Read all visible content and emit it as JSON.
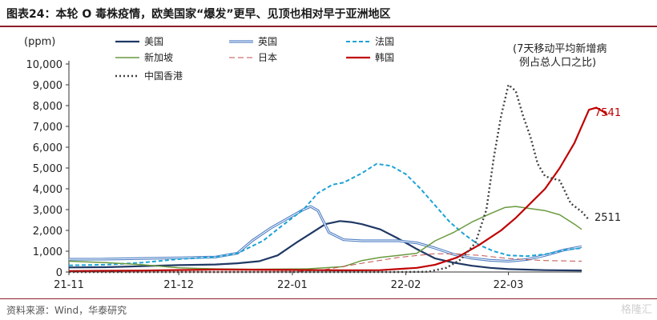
{
  "header": {
    "title": "图表24：本轮 O 毒株疫情，欧美国家“爆发”更早、见顶也相对早于亚洲地区"
  },
  "footer": {
    "source": "资料来源：Wind，华泰研究",
    "watermark": "格隆汇"
  },
  "colors": {
    "accent_rule": "#8c1d2b"
  },
  "chart_data": {
    "type": "line",
    "unit_label": "(ppm)",
    "annotation": [
      "(7天移动平均新增病",
      "例占总人口之比)"
    ],
    "end_labels": [
      {
        "text": "7541",
        "value": 7541,
        "color": "#c00000"
      },
      {
        "text": "2511",
        "value": 2511,
        "color": "#222222"
      }
    ],
    "x_ticks": [
      {
        "label": "21-11",
        "day": 0
      },
      {
        "label": "21-12",
        "day": 30
      },
      {
        "label": "22-01",
        "day": 61
      },
      {
        "label": "22-02",
        "day": 92
      },
      {
        "label": "22-03",
        "day": 120
      }
    ],
    "x_range": [
      0,
      140
    ],
    "ylim": [
      0,
      10000
    ],
    "y_ticks": [
      0,
      1000,
      2000,
      3000,
      4000,
      5000,
      6000,
      7000,
      8000,
      9000,
      10000
    ],
    "y_tick_labels": [
      "0",
      "1,000",
      "2,000",
      "3,000",
      "4,000",
      "5,000",
      "6,000",
      "7,000",
      "8,000",
      "9,000",
      "10,000"
    ],
    "series": [
      {
        "name": "美国",
        "color": "#1f3864",
        "style": "solid",
        "width": 2.2,
        "points": [
          [
            0,
            220
          ],
          [
            10,
            230
          ],
          [
            20,
            280
          ],
          [
            30,
            330
          ],
          [
            40,
            360
          ],
          [
            46,
            420
          ],
          [
            52,
            520
          ],
          [
            57,
            800
          ],
          [
            62,
            1400
          ],
          [
            66,
            1850
          ],
          [
            70,
            2300
          ],
          [
            74,
            2450
          ],
          [
            77,
            2400
          ],
          [
            80,
            2300
          ],
          [
            85,
            2050
          ],
          [
            90,
            1600
          ],
          [
            95,
            1100
          ],
          [
            100,
            650
          ],
          [
            105,
            450
          ],
          [
            110,
            300
          ],
          [
            115,
            200
          ],
          [
            120,
            140
          ],
          [
            130,
            90
          ],
          [
            140,
            75
          ]
        ]
      },
      {
        "name": "英国",
        "color": "#4f7fc3",
        "style": "double",
        "width": 3.2,
        "points": [
          [
            0,
            610
          ],
          [
            10,
            620
          ],
          [
            20,
            650
          ],
          [
            30,
            680
          ],
          [
            40,
            720
          ],
          [
            46,
            900
          ],
          [
            50,
            1500
          ],
          [
            55,
            2100
          ],
          [
            60,
            2600
          ],
          [
            64,
            3000
          ],
          [
            66,
            3150
          ],
          [
            68,
            2950
          ],
          [
            71,
            1900
          ],
          [
            75,
            1550
          ],
          [
            80,
            1500
          ],
          [
            90,
            1500
          ],
          [
            95,
            1400
          ],
          [
            100,
            1150
          ],
          [
            105,
            850
          ],
          [
            110,
            660
          ],
          [
            115,
            560
          ],
          [
            120,
            520
          ],
          [
            125,
            600
          ],
          [
            130,
            800
          ],
          [
            135,
            1050
          ],
          [
            140,
            1220
          ]
        ]
      },
      {
        "name": "法国",
        "color": "#1ca3d6",
        "style": "dashed",
        "width": 2,
        "points": [
          [
            0,
            320
          ],
          [
            10,
            350
          ],
          [
            20,
            450
          ],
          [
            30,
            620
          ],
          [
            40,
            720
          ],
          [
            46,
            900
          ],
          [
            53,
            1500
          ],
          [
            58,
            2200
          ],
          [
            64,
            3000
          ],
          [
            68,
            3800
          ],
          [
            72,
            4200
          ],
          [
            75,
            4300
          ],
          [
            80,
            4750
          ],
          [
            84,
            5200
          ],
          [
            88,
            5100
          ],
          [
            92,
            4700
          ],
          [
            96,
            4000
          ],
          [
            100,
            3200
          ],
          [
            104,
            2400
          ],
          [
            108,
            1800
          ],
          [
            112,
            1300
          ],
          [
            116,
            1000
          ],
          [
            120,
            800
          ],
          [
            125,
            760
          ],
          [
            130,
            850
          ],
          [
            135,
            1050
          ],
          [
            140,
            1150
          ]
        ]
      },
      {
        "name": "新加坡",
        "color": "#6a9a3e",
        "style": "solid",
        "width": 1.5,
        "points": [
          [
            0,
            520
          ],
          [
            10,
            450
          ],
          [
            20,
            350
          ],
          [
            30,
            200
          ],
          [
            40,
            150
          ],
          [
            50,
            130
          ],
          [
            58,
            140
          ],
          [
            65,
            150
          ],
          [
            75,
            260
          ],
          [
            80,
            550
          ],
          [
            85,
            700
          ],
          [
            90,
            800
          ],
          [
            95,
            900
          ],
          [
            100,
            1500
          ],
          [
            105,
            1900
          ],
          [
            110,
            2400
          ],
          [
            115,
            2800
          ],
          [
            119,
            3100
          ],
          [
            122,
            3150
          ],
          [
            126,
            3050
          ],
          [
            130,
            2950
          ],
          [
            134,
            2750
          ],
          [
            138,
            2300
          ],
          [
            140,
            2050
          ]
        ]
      },
      {
        "name": "日本",
        "color": "#c0504d",
        "style": "dashed-thin",
        "width": 1,
        "points": [
          [
            0,
            5
          ],
          [
            30,
            5
          ],
          [
            55,
            10
          ],
          [
            62,
            20
          ],
          [
            70,
            120
          ],
          [
            80,
            420
          ],
          [
            90,
            700
          ],
          [
            100,
            880
          ],
          [
            106,
            870
          ],
          [
            112,
            800
          ],
          [
            120,
            650
          ],
          [
            130,
            550
          ],
          [
            140,
            520
          ]
        ]
      },
      {
        "name": "韩国",
        "color": "#c00000",
        "style": "solid",
        "width": 2.2,
        "points": [
          [
            0,
            45
          ],
          [
            20,
            70
          ],
          [
            40,
            120
          ],
          [
            60,
            100
          ],
          [
            75,
            80
          ],
          [
            85,
            90
          ],
          [
            95,
            200
          ],
          [
            100,
            350
          ],
          [
            106,
            700
          ],
          [
            112,
            1300
          ],
          [
            118,
            2000
          ],
          [
            122,
            2600
          ],
          [
            126,
            3300
          ],
          [
            130,
            4000
          ],
          [
            134,
            5000
          ],
          [
            138,
            6200
          ],
          [
            142,
            7800
          ],
          [
            144,
            7900
          ],
          [
            146,
            7700
          ],
          [
            147,
            7541
          ]
        ]
      },
      {
        "name": "中国香港",
        "color": "#404040",
        "style": "dotted",
        "width": 2.4,
        "points": [
          [
            0,
            0
          ],
          [
            60,
            0
          ],
          [
            90,
            0
          ],
          [
            98,
            10
          ],
          [
            103,
            200
          ],
          [
            107,
            600
          ],
          [
            111,
            1400
          ],
          [
            114,
            3000
          ],
          [
            116,
            5500
          ],
          [
            118,
            7500
          ],
          [
            120,
            9000
          ],
          [
            122,
            8700
          ],
          [
            124,
            7500
          ],
          [
            126,
            6500
          ],
          [
            128,
            5200
          ],
          [
            130,
            4600
          ],
          [
            134,
            4400
          ],
          [
            137,
            3300
          ],
          [
            140,
            2900
          ],
          [
            142,
            2511
          ]
        ]
      }
    ]
  }
}
